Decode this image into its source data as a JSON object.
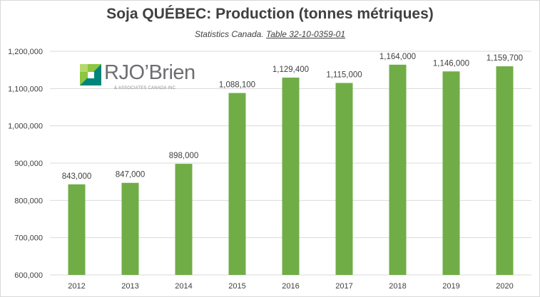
{
  "chart_data": {
    "type": "bar",
    "title": "Soja QUÉBEC: Production (tonnes métriques)",
    "subtitle_prefix": "Statistics Canada.",
    "subtitle_ref": "Table 32-10-0359-01",
    "categories": [
      "2012",
      "2013",
      "2014",
      "2015",
      "2016",
      "2017",
      "2018",
      "2019",
      "2020"
    ],
    "values": [
      843000,
      847000,
      898000,
      1088100,
      1129400,
      1115000,
      1164000,
      1146000,
      1159700
    ],
    "value_labels": [
      "843,000",
      "847,000",
      "898,000",
      "1,088,100",
      "1,129,400",
      "1,115,000",
      "1,164,000",
      "1,146,000",
      "1,159,700"
    ],
    "ylim": [
      600000,
      1200000
    ],
    "y_ticks": [
      "600,000",
      "700,000",
      "800,000",
      "900,000",
      "1,000,000",
      "1,100,000",
      "1,200,000"
    ],
    "xlabel": "",
    "ylabel": "",
    "grid": true,
    "bar_color": "#70ad47"
  },
  "logo": {
    "name": "RJO’Brien",
    "tagline": "& ASSOCIATES CANADA INC"
  }
}
